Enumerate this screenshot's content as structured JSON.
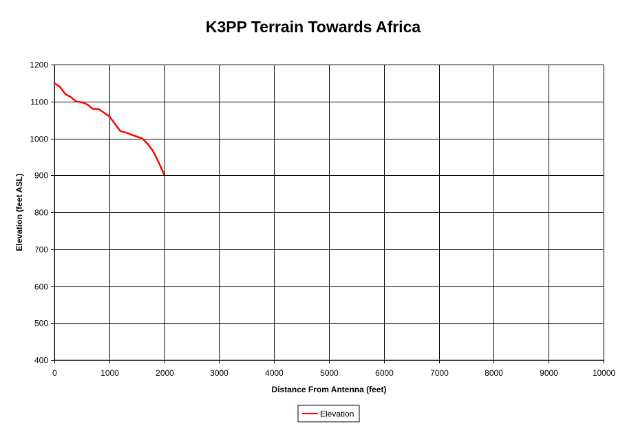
{
  "chart_data": {
    "type": "line",
    "title": "K3PP Terrain Towards Africa",
    "xlabel": "Distance From Antenna (feet)",
    "ylabel": "Elevation (feet ASL)",
    "xlim": [
      0,
      10000
    ],
    "ylim": [
      400,
      1200
    ],
    "x_ticks": [
      0,
      1000,
      2000,
      3000,
      4000,
      5000,
      6000,
      7000,
      8000,
      9000,
      10000
    ],
    "y_ticks": [
      400,
      500,
      600,
      700,
      800,
      900,
      1000,
      1100,
      1200
    ],
    "grid": true,
    "legend_position": "bottom-center",
    "series": [
      {
        "name": "Elevation",
        "color": "#ff0000",
        "x": [
          0,
          100,
          200,
          300,
          400,
          500,
          600,
          700,
          800,
          900,
          1000,
          1100,
          1200,
          1300,
          1400,
          1500,
          1600,
          1700,
          1800,
          1900,
          2000
        ],
        "y": [
          1150,
          1140,
          1120,
          1112,
          1100,
          1098,
          1092,
          1080,
          1080,
          1070,
          1060,
          1040,
          1020,
          1016,
          1010,
          1005,
          1000,
          985,
          965,
          935,
          902
        ]
      }
    ]
  }
}
